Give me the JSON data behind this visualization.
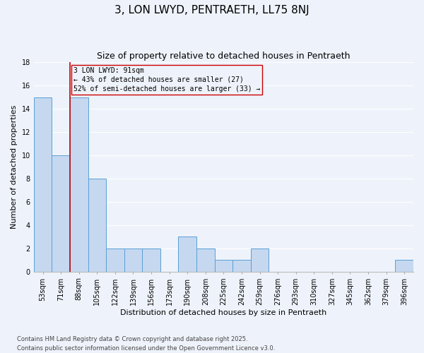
{
  "title": "3, LON LWYD, PENTRAETH, LL75 8NJ",
  "subtitle": "Size of property relative to detached houses in Pentraeth",
  "xlabel": "Distribution of detached houses by size in Pentraeth",
  "ylabel": "Number of detached properties",
  "categories": [
    "53sqm",
    "71sqm",
    "88sqm",
    "105sqm",
    "122sqm",
    "139sqm",
    "156sqm",
    "173sqm",
    "190sqm",
    "208sqm",
    "225sqm",
    "242sqm",
    "259sqm",
    "276sqm",
    "293sqm",
    "310sqm",
    "327sqm",
    "345sqm",
    "362sqm",
    "379sqm",
    "396sqm"
  ],
  "values": [
    15,
    10,
    15,
    8,
    2,
    2,
    2,
    0,
    3,
    2,
    1,
    1,
    2,
    0,
    0,
    0,
    0,
    0,
    0,
    0,
    1
  ],
  "bar_color": "#c5d8f0",
  "bar_edge_color": "#5a9fd4",
  "vline_x_index": 2,
  "vline_color": "#cc0000",
  "annotation_box_color": "#cc0000",
  "annotation_lines": [
    "3 LON LWYD: 91sqm",
    "← 43% of detached houses are smaller (27)",
    "52% of semi-detached houses are larger (33) →"
  ],
  "ylim": [
    0,
    18
  ],
  "yticks": [
    0,
    2,
    4,
    6,
    8,
    10,
    12,
    14,
    16,
    18
  ],
  "background_color": "#eef3fb",
  "grid_color": "#ffffff",
  "footer": "Contains HM Land Registry data © Crown copyright and database right 2025.\nContains public sector information licensed under the Open Government Licence v3.0.",
  "title_fontsize": 11,
  "subtitle_fontsize": 9,
  "axis_label_fontsize": 8,
  "tick_fontsize": 7,
  "annotation_fontsize": 7,
  "footer_fontsize": 6
}
